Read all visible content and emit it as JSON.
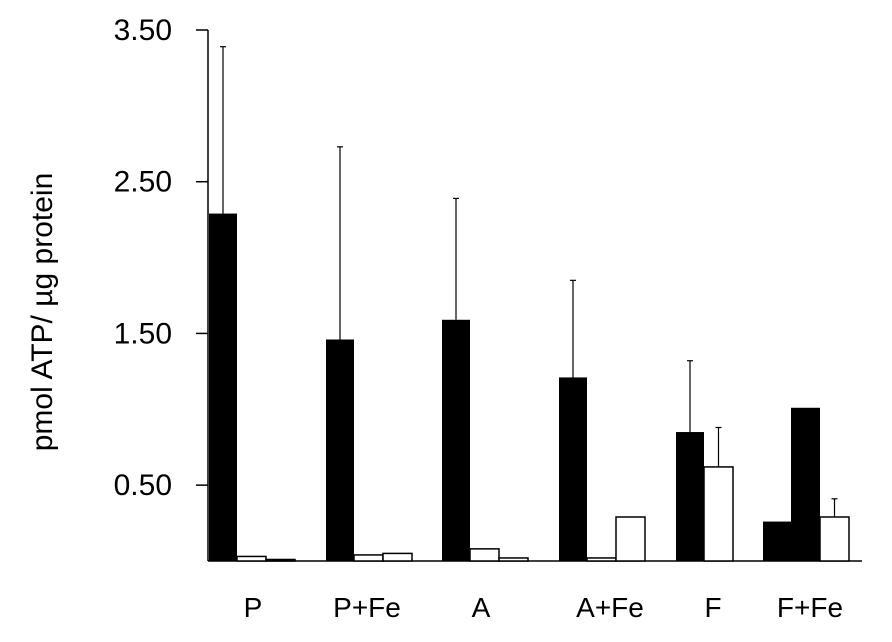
{
  "chart_data": {
    "type": "bar",
    "ylabel": "pmol ATP/ µg protein",
    "xlabel": "",
    "title": "",
    "ylim": [
      0,
      3.5
    ],
    "y_ticks": [
      0.5,
      1.5,
      2.5,
      3.5
    ],
    "y_tick_labels": [
      "0.50",
      "1.50",
      "2.50",
      "3.50"
    ],
    "grid": false,
    "legend": "none",
    "categories": [
      "P",
      "P+Fe",
      "A",
      "A+Fe",
      "F",
      "F+Fe"
    ],
    "series": [
      {
        "color": "#000000",
        "fill": "solid",
        "values": [
          2.29,
          1.46,
          1.59,
          1.21,
          0.85,
          1.01
        ],
        "error": [
          1.1,
          1.27,
          0.8,
          0.64,
          0.47,
          0
        ]
      },
      {
        "color": "#000000",
        "fill": "white",
        "values": [
          0.03,
          0.04,
          0.08,
          0.02,
          0.62,
          0.29
        ],
        "error": [
          0,
          0,
          0,
          0,
          0.26,
          0.12
        ]
      },
      {
        "color": "#000000",
        "fill": "white",
        "values": [
          0.01,
          0.05,
          0.02,
          0.29,
          0,
          0
        ],
        "error": [
          0,
          0,
          0,
          0,
          0,
          0
        ]
      },
      {
        "color": "#000000",
        "fill": "solid",
        "values": [
          0,
          0,
          0,
          0,
          0,
          0.26
        ],
        "error": [
          0,
          0,
          0,
          0,
          0,
          0
        ]
      }
    ]
  }
}
